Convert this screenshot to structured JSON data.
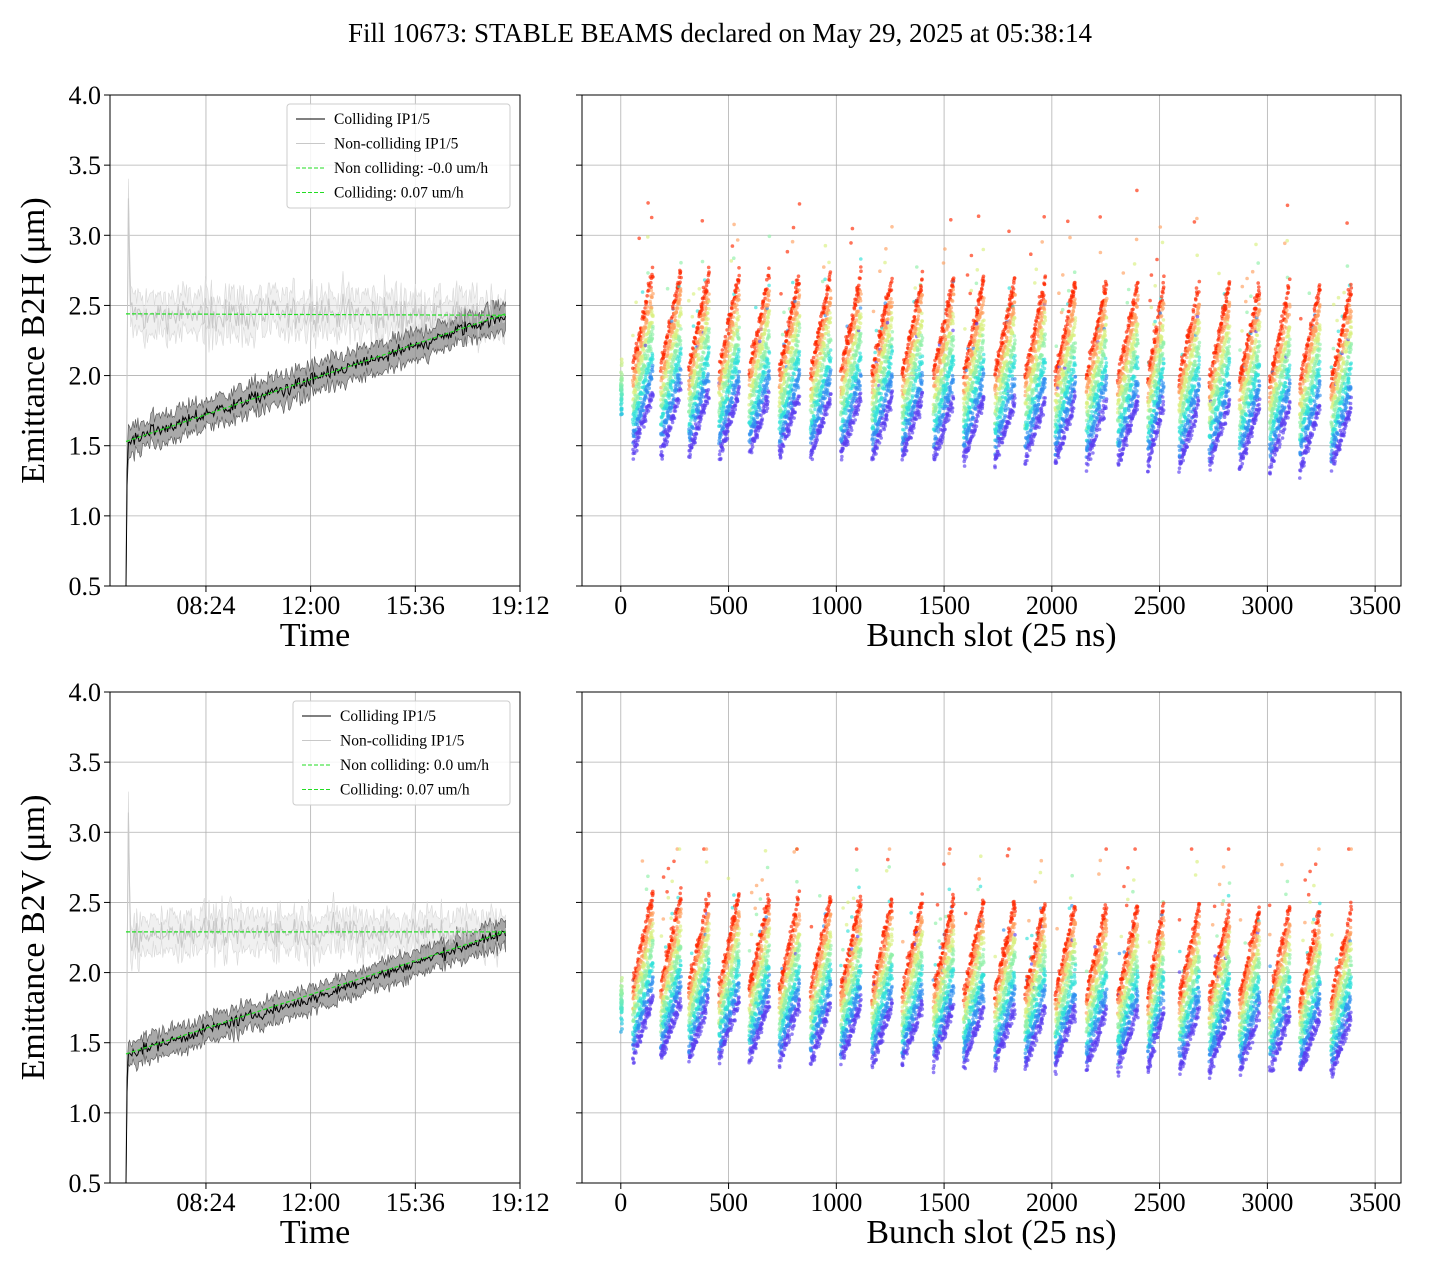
{
  "figure": {
    "title": "Fill 10673: STABLE BEAMS declared on May 29, 2025 at 05:38:14"
  },
  "colors": {
    "colliding": "#000000",
    "non_colliding": "#c8c8c8",
    "band_colliding": "#8c8c8c",
    "band_non_colliding": "#e6e6e6",
    "fit": "#22dd22",
    "grid": "#b0b0b0",
    "scatter_colormap": [
      "#5a3ff0",
      "#2f8ff0",
      "#2fe0d8",
      "#8ff0a8",
      "#d8f080",
      "#ffa060",
      "#ff2800"
    ]
  },
  "chart_data": [
    {
      "type": "line",
      "panel": "B2H-time",
      "xlabel": "Time",
      "ylabel": "Emittance B2H (μm)",
      "ylim": [
        0.5,
        4.0
      ],
      "yticks": [
        "0.5",
        "1.0",
        "1.5",
        "2.0",
        "2.5",
        "3.0",
        "3.5",
        "4.0"
      ],
      "xlim_hours": [
        5.1,
        19.2
      ],
      "xticks": [
        {
          "label": "08:24",
          "hours": 8.4
        },
        {
          "label": "12:00",
          "hours": 12.0
        },
        {
          "label": "15:36",
          "hours": 15.6
        },
        {
          "label": "19:12",
          "hours": 19.2
        }
      ],
      "grid": true,
      "legend_position": "upper-center",
      "legend": [
        "Colliding IP1/5",
        "Non-colliding IP1/5",
        "Non colliding: -0.0 um/h",
        "Colliding: 0.07 um/h"
      ],
      "series": [
        {
          "name": "Colliding IP1/5",
          "start_hours": 5.65,
          "end_hours": 18.7,
          "x_hours": [
            5.65,
            5.7,
            6.5,
            7.5,
            8.5,
            9.5,
            10.5,
            11.5,
            12.5,
            13.5,
            14.5,
            15.5,
            16.5,
            17.5,
            18.7
          ],
          "values": [
            0.5,
            1.52,
            1.6,
            1.66,
            1.73,
            1.8,
            1.87,
            1.93,
            2.0,
            2.07,
            2.13,
            2.2,
            2.27,
            2.35,
            2.42
          ],
          "noise": 0.05,
          "band": 0.1
        },
        {
          "name": "Non-colliding IP1/5",
          "start_hours": 5.65,
          "end_hours": 18.7,
          "x_hours": [
            5.65,
            5.72,
            5.8,
            6.5,
            8.5,
            10.5,
            12.5,
            14.5,
            16.5,
            18.7
          ],
          "values": [
            0.5,
            3.4,
            2.45,
            2.42,
            2.44,
            2.43,
            2.45,
            2.44,
            2.42,
            2.43
          ],
          "noise": 0.12,
          "band": 0.13
        },
        {
          "name": "Non colliding: -0.0 um/h",
          "x_hours": [
            5.65,
            18.7
          ],
          "values": [
            2.44,
            2.43
          ]
        },
        {
          "name": "Colliding: 0.07 um/h",
          "x_hours": [
            5.65,
            18.7
          ],
          "values": [
            1.53,
            2.44
          ]
        }
      ]
    },
    {
      "type": "scatter",
      "panel": "B2H-bunch",
      "xlabel": "Bunch slot (25 ns)",
      "ylim": [
        0.5,
        4.0
      ],
      "xlim": [
        -180,
        3620
      ],
      "xticks": [
        "0",
        "500",
        "1000",
        "1500",
        "2000",
        "2500",
        "3000",
        "3500"
      ],
      "grid": true,
      "bunch_slot_range": [
        0,
        3430
      ],
      "train_starts": [
        55,
        185,
        315,
        455,
        595,
        735,
        880,
        1020,
        1165,
        1305,
        1450,
        1590,
        1735,
        1875,
        2015,
        2160,
        2305,
        2445,
        2590,
        2730,
        2870,
        3010,
        3150,
        3295
      ],
      "train_length": 95,
      "per_train_ranges": {
        "start_value": 1.55,
        "end_value": 2.3,
        "spread_low": 0.25,
        "spread_high": 0.35
      },
      "value_range": [
        1.1,
        3.48
      ]
    },
    {
      "type": "line",
      "panel": "B2V-time",
      "xlabel": "Time",
      "ylabel": "Emittance B2V (μm)",
      "ylim": [
        0.5,
        4.0
      ],
      "yticks": [
        "0.5",
        "1.0",
        "1.5",
        "2.0",
        "2.5",
        "3.0",
        "3.5",
        "4.0"
      ],
      "xlim_hours": [
        5.1,
        19.2
      ],
      "xticks": [
        {
          "label": "08:24",
          "hours": 8.4
        },
        {
          "label": "12:00",
          "hours": 12.0
        },
        {
          "label": "15:36",
          "hours": 15.6
        },
        {
          "label": "19:12",
          "hours": 19.2
        }
      ],
      "grid": true,
      "legend_position": "upper-center",
      "legend": [
        "Colliding IP1/5",
        "Non-colliding IP1/5",
        "Non colliding: 0.0 um/h",
        "Colliding: 0.07 um/h"
      ],
      "series": [
        {
          "name": "Colliding IP1/5",
          "start_hours": 5.65,
          "end_hours": 18.7,
          "x_hours": [
            5.65,
            5.7,
            6.5,
            7.5,
            8.5,
            9.5,
            10.5,
            11.5,
            12.5,
            13.5,
            14.5,
            15.5,
            16.5,
            17.5,
            18.7
          ],
          "values": [
            0.5,
            1.42,
            1.47,
            1.53,
            1.6,
            1.66,
            1.72,
            1.78,
            1.84,
            1.92,
            1.99,
            2.06,
            2.13,
            2.2,
            2.28
          ],
          "noise": 0.04,
          "band": 0.09
        },
        {
          "name": "Non-colliding IP1/5",
          "start_hours": 5.65,
          "end_hours": 18.7,
          "x_hours": [
            5.65,
            5.72,
            5.8,
            6.5,
            8.5,
            10.5,
            12.5,
            14.5,
            16.5,
            18.7
          ],
          "values": [
            0.5,
            3.3,
            2.2,
            2.28,
            2.3,
            2.29,
            2.3,
            2.28,
            2.29,
            2.28
          ],
          "noise": 0.1,
          "band": 0.12
        },
        {
          "name": "Non colliding: 0.0 um/h",
          "x_hours": [
            5.65,
            18.7
          ],
          "values": [
            2.29,
            2.29
          ]
        },
        {
          "name": "Colliding: 0.07 um/h",
          "x_hours": [
            5.65,
            18.7
          ],
          "values": [
            1.42,
            2.29
          ]
        }
      ]
    },
    {
      "type": "scatter",
      "panel": "B2V-bunch",
      "xlabel": "Bunch slot (25 ns)",
      "ylim": [
        0.5,
        4.0
      ],
      "xlim": [
        -180,
        3620
      ],
      "xticks": [
        "0",
        "500",
        "1000",
        "1500",
        "2000",
        "2500",
        "3000",
        "3500"
      ],
      "grid": true,
      "bunch_slot_range": [
        0,
        3430
      ],
      "train_starts": [
        55,
        185,
        315,
        455,
        595,
        735,
        880,
        1020,
        1165,
        1305,
        1450,
        1590,
        1735,
        1875,
        2015,
        2160,
        2305,
        2445,
        2590,
        2730,
        2870,
        3010,
        3150,
        3295
      ],
      "train_length": 95,
      "per_train_ranges": {
        "start_value": 1.45,
        "end_value": 2.15,
        "spread_low": 0.2,
        "spread_high": 0.3
      },
      "value_range": [
        1.22,
        2.88
      ]
    }
  ]
}
